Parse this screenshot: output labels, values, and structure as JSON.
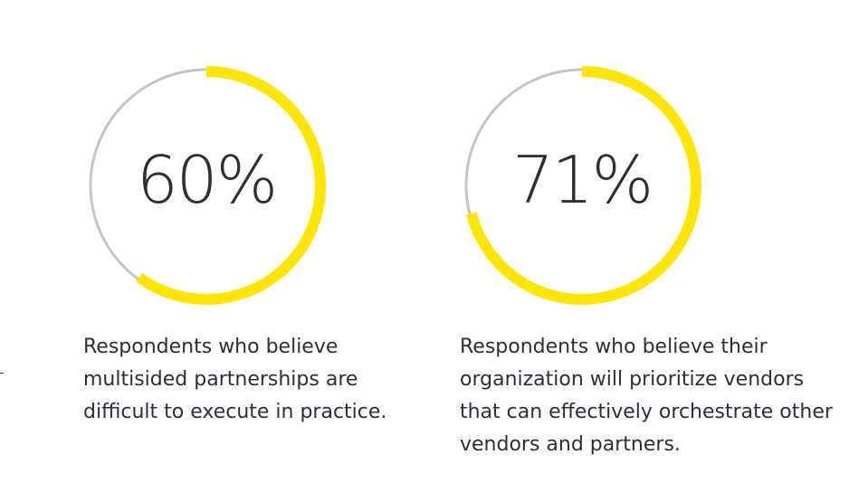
{
  "chart_data": [
    {
      "type": "donut",
      "value": 60,
      "max": 100,
      "label": "60%",
      "description_lines": [
        "Respondents who believe",
        "multisided partnerships are",
        "difficult to execute in practice."
      ],
      "colors": {
        "fill": "#ffe600",
        "track": "#c4c4cd"
      }
    },
    {
      "type": "donut",
      "value": 71,
      "max": 100,
      "label": "71%",
      "description_lines": [
        "Respondents who believe their",
        "organization will prioritize vendors",
        "that can effectively orchestrate other",
        "vendors and partners."
      ],
      "colors": {
        "fill": "#ffe600",
        "track": "#c4c4cd"
      }
    }
  ]
}
